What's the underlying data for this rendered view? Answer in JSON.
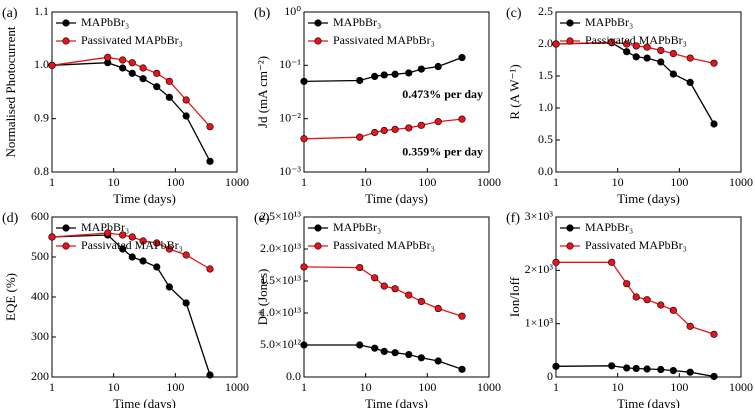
{
  "chart_data": [
    {
      "type": "line",
      "panel_label": "(a)",
      "xlabel": "Time (days)",
      "ylabel": "Normalised Photocurrent",
      "xlog": true,
      "xlim": [
        1,
        1000
      ],
      "xticks": [
        1,
        10,
        100,
        1000
      ],
      "ylim": [
        0.8,
        1.1
      ],
      "yticks": [
        0.8,
        0.9,
        {
          "value": 1.0,
          "label": "1.0"
        },
        1.1
      ],
      "x": [
        1,
        8,
        14,
        20,
        30,
        50,
        80,
        150,
        365
      ],
      "series": [
        {
          "name": "MAPbBr₃",
          "color": "#000000",
          "values": [
            1.0,
            1.005,
            0.995,
            0.985,
            0.975,
            0.96,
            0.94,
            0.905,
            0.82
          ]
        },
        {
          "name": "Passivated MAPbBr₃",
          "color": "#e8141b",
          "values": [
            1.0,
            1.015,
            1.01,
            1.005,
            0.995,
            0.985,
            0.97,
            0.935,
            0.885
          ]
        }
      ]
    },
    {
      "type": "line",
      "panel_label": "(b)",
      "xlabel": "Time (days)",
      "ylabel": "Jd (mA cm⁻²)",
      "xlog": true,
      "ylog": true,
      "xlim": [
        1,
        1000
      ],
      "xticks": [
        1,
        10,
        100,
        1000
      ],
      "ylim": [
        0.001,
        1
      ],
      "yticks": [
        {
          "value": 0.001,
          "label": "10⁻³"
        },
        {
          "value": 0.01,
          "label": "10⁻²"
        },
        {
          "value": 0.1,
          "label": "10⁻¹"
        },
        {
          "value": 1,
          "label": "10⁰"
        }
      ],
      "annotations": [
        {
          "text": "0.473% per day",
          "color": "#000000"
        },
        {
          "text": "0.359% per day",
          "color": "#e8141b"
        }
      ],
      "x": [
        1,
        8,
        14,
        20,
        30,
        50,
        80,
        150,
        365
      ],
      "series": [
        {
          "name": "MAPbBr₃",
          "color": "#000000",
          "values": [
            0.05,
            0.052,
            0.062,
            0.066,
            0.068,
            0.072,
            0.085,
            0.095,
            0.14
          ]
        },
        {
          "name": "Passivated MAPbBr₃",
          "color": "#e8141b",
          "values": [
            0.0042,
            0.0045,
            0.0055,
            0.006,
            0.0063,
            0.0067,
            0.0075,
            0.0088,
            0.0098
          ]
        }
      ]
    },
    {
      "type": "line",
      "panel_label": "(c)",
      "xlabel": "Time (days)",
      "ylabel": "R (A W⁻¹)",
      "xlog": true,
      "xlim": [
        1,
        1000
      ],
      "xticks": [
        1,
        10,
        100,
        1000
      ],
      "ylim": [
        0,
        2.5
      ],
      "yticks": [
        {
          "value": 0,
          "label": "0.0"
        },
        0.5,
        {
          "value": 1,
          "label": "1.0"
        },
        1.5,
        {
          "value": 2,
          "label": "2.0"
        },
        2.5
      ],
      "x": [
        1,
        8,
        14,
        20,
        30,
        50,
        80,
        150,
        365
      ],
      "series": [
        {
          "name": "MAPbBr₃",
          "color": "#000000",
          "values": [
            2.0,
            2.02,
            1.88,
            1.8,
            1.78,
            1.72,
            1.53,
            1.4,
            0.75
          ]
        },
        {
          "name": "Passivated MAPbBr₃",
          "color": "#e8141b",
          "values": [
            2.0,
            2.03,
            2.0,
            1.97,
            1.95,
            1.9,
            1.85,
            1.78,
            1.7
          ]
        }
      ]
    },
    {
      "type": "line",
      "panel_label": "(d)",
      "xlabel": "Time (days)",
      "ylabel": "EQE (%)",
      "xlog": true,
      "xlim": [
        1,
        1000
      ],
      "xticks": [
        1,
        10,
        100,
        1000
      ],
      "ylim": [
        200,
        600
      ],
      "yticks": [
        200,
        300,
        400,
        500,
        600
      ],
      "x": [
        1,
        8,
        14,
        20,
        30,
        50,
        80,
        150,
        365
      ],
      "series": [
        {
          "name": "MAPbBr₃",
          "color": "#000000",
          "values": [
            550,
            555,
            520,
            500,
            490,
            475,
            425,
            385,
            205
          ]
        },
        {
          "name": "Passivated MAPbBr₃",
          "color": "#e8141b",
          "values": [
            550,
            560,
            555,
            550,
            540,
            535,
            520,
            505,
            470
          ]
        }
      ]
    },
    {
      "type": "line",
      "panel_label": "(e)",
      "xlabel": "Time (days)",
      "ylabel": "D* (Jones)",
      "xlog": true,
      "xlim": [
        1,
        1000
      ],
      "xticks": [
        1,
        10,
        100,
        1000
      ],
      "ylim": [
        0,
        25000000000000.0
      ],
      "yticks": [
        {
          "value": 0,
          "label": "0.0"
        },
        {
          "value": 5000000000000.0,
          "label": "5.0×10¹²"
        },
        {
          "value": 10000000000000.0,
          "label": "1.0×10¹³"
        },
        {
          "value": 15000000000000.0,
          "label": "1.5×10¹³"
        },
        {
          "value": 20000000000000.0,
          "label": "2.0×10¹³"
        },
        {
          "value": 25000000000000.0,
          "label": "2.5×10¹³"
        }
      ],
      "x": [
        1,
        8,
        14,
        20,
        30,
        50,
        80,
        150,
        365
      ],
      "series": [
        {
          "name": "MAPbBr₃",
          "color": "#000000",
          "values": [
            5000000000000.0,
            5000000000000.0,
            4500000000000.0,
            4000000000000.0,
            3800000000000.0,
            3500000000000.0,
            3000000000000.0,
            2500000000000.0,
            1200000000000.0
          ]
        },
        {
          "name": "Passivated MAPbBr₃",
          "color": "#e8141b",
          "values": [
            17200000000000.0,
            17100000000000.0,
            15500000000000.0,
            14200000000000.0,
            13800000000000.0,
            12800000000000.0,
            11800000000000.0,
            10700000000000.0,
            9500000000000.0
          ]
        }
      ]
    },
    {
      "type": "line",
      "panel_label": "(f)",
      "xlabel": "Time (days)",
      "ylabel": "Ion/Ioff",
      "xlog": true,
      "xlim": [
        1,
        1000
      ],
      "xticks": [
        1,
        10,
        100,
        1000
      ],
      "ylim": [
        0,
        3000
      ],
      "yticks": [
        0,
        {
          "value": 1000,
          "label": "1×10³"
        },
        {
          "value": 2000,
          "label": "2×10³"
        },
        {
          "value": 3000,
          "label": "3×10³"
        }
      ],
      "x": [
        1,
        8,
        14,
        20,
        30,
        50,
        80,
        150,
        365
      ],
      "series": [
        {
          "name": "MAPbBr₃",
          "color": "#000000",
          "values": [
            200,
            210,
            170,
            160,
            150,
            140,
            120,
            90,
            10
          ]
        },
        {
          "name": "Passivated MAPbBr₃",
          "color": "#e8141b",
          "values": [
            2150,
            2150,
            1750,
            1500,
            1450,
            1350,
            1250,
            950,
            800
          ]
        }
      ]
    }
  ]
}
